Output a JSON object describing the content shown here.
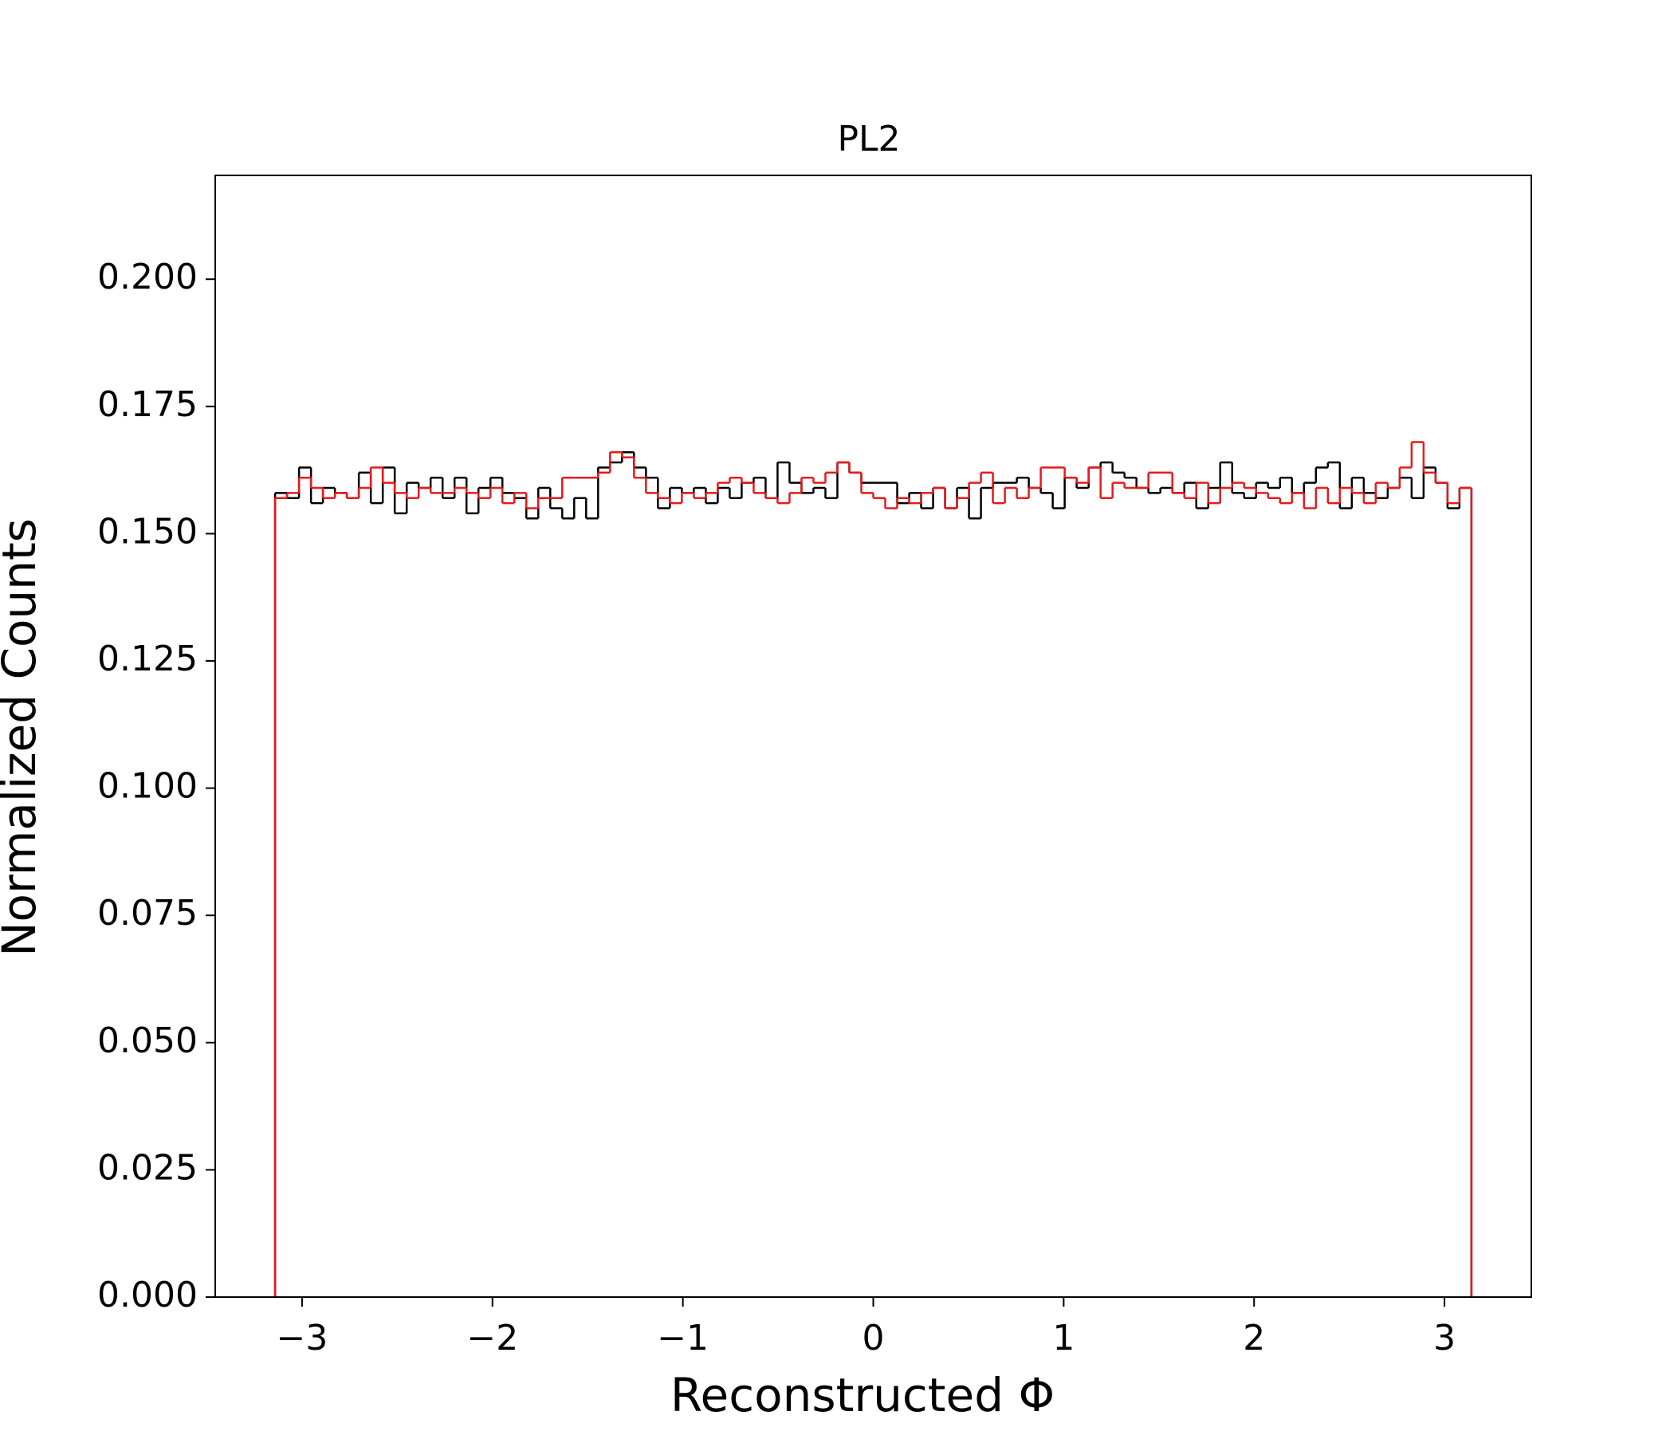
{
  "chart_data": {
    "type": "histogram",
    "title": "PL2",
    "x_label": "Reconstructed Φ",
    "y_label": "Normalized Counts",
    "bins": [
      -3.1416,
      -3.0788,
      -3.0159,
      -2.9531,
      -2.8903,
      -2.8274,
      -2.7646,
      -2.7018,
      -2.6389,
      -2.5761,
      -2.5133,
      -2.4504,
      -2.3876,
      -2.3248,
      -2.2619,
      -2.1991,
      -2.1363,
      -2.0735,
      -2.0106,
      -1.9478,
      -1.885,
      -1.8221,
      -1.7593,
      -1.6965,
      -1.6336,
      -1.5708,
      -1.508,
      -1.4451,
      -1.3823,
      -1.3195,
      -1.2566,
      -1.1938,
      -1.131,
      -1.0681,
      -1.0053,
      -0.9425,
      -0.8796,
      -0.8168,
      -0.754,
      -0.6912,
      -0.6283,
      -0.5655,
      -0.5027,
      -0.4398,
      -0.377,
      -0.3142,
      -0.2513,
      -0.1885,
      -0.1257,
      -0.0628,
      0,
      0.0628,
      0.1257,
      0.1885,
      0.2513,
      0.3142,
      0.377,
      0.4398,
      0.5027,
      0.5655,
      0.6283,
      0.6912,
      0.754,
      0.8168,
      0.8796,
      0.9425,
      1.0053,
      1.0681,
      1.131,
      1.1938,
      1.2566,
      1.3195,
      1.3823,
      1.4451,
      1.508,
      1.5708,
      1.6336,
      1.6965,
      1.7593,
      1.8221,
      1.885,
      1.9478,
      2.0106,
      2.0735,
      2.1363,
      2.1991,
      2.2619,
      2.3248,
      2.3876,
      2.4504,
      2.5133,
      2.5761,
      2.6389,
      2.7018,
      2.7646,
      2.8274,
      2.8903,
      2.9531,
      3.0159,
      3.0788,
      3.1416
    ],
    "series": [
      {
        "color": "#000000",
        "values": [
          0.158,
          0.157,
          0.163,
          0.156,
          0.159,
          0.158,
          0.157,
          0.162,
          0.156,
          0.163,
          0.154,
          0.16,
          0.159,
          0.161,
          0.157,
          0.161,
          0.154,
          0.159,
          0.161,
          0.158,
          0.157,
          0.153,
          0.159,
          0.155,
          0.153,
          0.157,
          0.153,
          0.163,
          0.164,
          0.166,
          0.163,
          0.161,
          0.155,
          0.159,
          0.158,
          0.159,
          0.156,
          0.159,
          0.157,
          0.16,
          0.161,
          0.157,
          0.164,
          0.16,
          0.158,
          0.159,
          0.157,
          0.164,
          0.162,
          0.16,
          0.16,
          0.16,
          0.156,
          0.158,
          0.155,
          0.159,
          0.155,
          0.159,
          0.153,
          0.159,
          0.16,
          0.16,
          0.161,
          0.159,
          0.158,
          0.155,
          0.161,
          0.159,
          0.163,
          0.164,
          0.162,
          0.161,
          0.159,
          0.158,
          0.159,
          0.158,
          0.16,
          0.155,
          0.159,
          0.164,
          0.158,
          0.157,
          0.16,
          0.159,
          0.161,
          0.158,
          0.16,
          0.163,
          0.164,
          0.155,
          0.161,
          0.158,
          0.157,
          0.159,
          0.161,
          0.157,
          0.163,
          0.16,
          0.155,
          0.159
        ]
      },
      {
        "color": "#e41a1c",
        "values": [
          0.157,
          0.158,
          0.161,
          0.159,
          0.157,
          0.158,
          0.157,
          0.159,
          0.163,
          0.16,
          0.158,
          0.157,
          0.159,
          0.158,
          0.158,
          0.159,
          0.158,
          0.157,
          0.159,
          0.156,
          0.158,
          0.155,
          0.157,
          0.157,
          0.161,
          0.161,
          0.161,
          0.162,
          0.166,
          0.165,
          0.161,
          0.158,
          0.157,
          0.156,
          0.158,
          0.157,
          0.158,
          0.16,
          0.161,
          0.16,
          0.158,
          0.157,
          0.156,
          0.158,
          0.161,
          0.16,
          0.162,
          0.164,
          0.162,
          0.158,
          0.157,
          0.155,
          0.157,
          0.156,
          0.158,
          0.159,
          0.155,
          0.157,
          0.16,
          0.162,
          0.156,
          0.159,
          0.157,
          0.159,
          0.163,
          0.163,
          0.161,
          0.16,
          0.163,
          0.157,
          0.16,
          0.159,
          0.159,
          0.162,
          0.162,
          0.158,
          0.157,
          0.16,
          0.156,
          0.159,
          0.16,
          0.159,
          0.158,
          0.157,
          0.156,
          0.158,
          0.155,
          0.159,
          0.156,
          0.159,
          0.158,
          0.156,
          0.16,
          0.159,
          0.163,
          0.168,
          0.162,
          0.16,
          0.156,
          0.159
        ]
      }
    ],
    "xlim": [
      -3.456,
      3.456
    ],
    "ylim": [
      0,
      0.2204
    ],
    "xticks": [
      {
        "value": -3,
        "label": "−3"
      },
      {
        "value": -2,
        "label": "−2"
      },
      {
        "value": -1,
        "label": "−1"
      },
      0,
      1,
      2,
      3
    ],
    "yticks": [
      {
        "value": 0,
        "label": "0.000"
      },
      0.025,
      {
        "value": 0.05,
        "label": "0.050"
      },
      0.075,
      {
        "value": 0.1,
        "label": "0.100"
      },
      0.125,
      {
        "value": 0.15,
        "label": "0.150"
      },
      0.175,
      {
        "value": 0.2,
        "label": "0.200"
      }
    ]
  }
}
